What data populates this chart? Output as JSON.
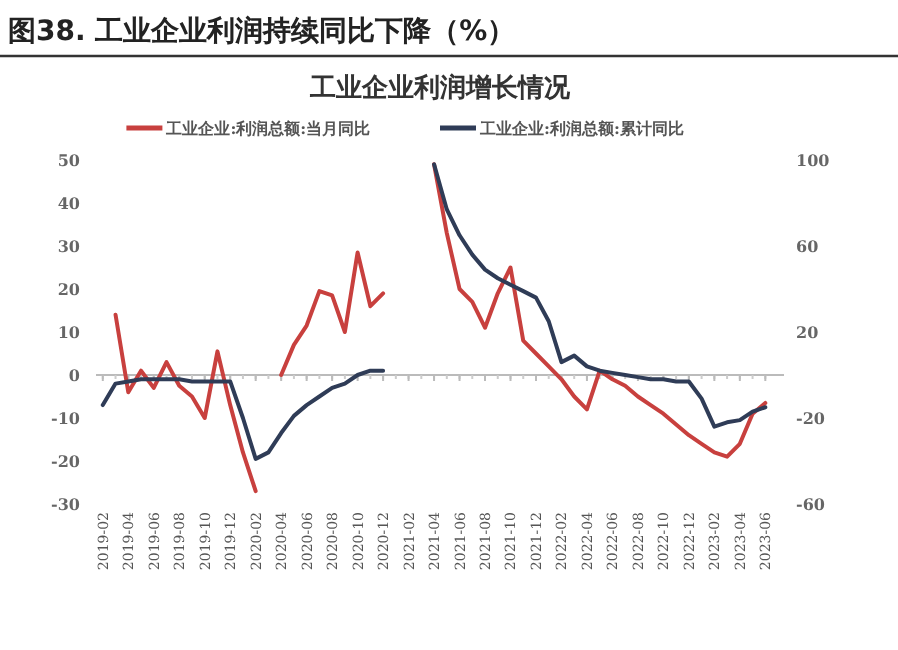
{
  "chart_data": {
    "type": "line",
    "title": "图38. 工业企业利润持续同比下降（%）",
    "subtitle": "工业企业利润增长情况",
    "x": [
      "2019-02",
      "2019-03",
      "2019-04",
      "2019-05",
      "2019-06",
      "2019-07",
      "2019-08",
      "2019-09",
      "2019-10",
      "2019-11",
      "2019-12",
      "2020-01",
      "2020-02",
      "2020-03",
      "2020-04",
      "2020-05",
      "2020-06",
      "2020-07",
      "2020-08",
      "2020-09",
      "2020-10",
      "2020-11",
      "2020-12",
      "2021-01",
      "2021-02",
      "2021-03",
      "2021-04",
      "2021-05",
      "2021-06",
      "2021-07",
      "2021-08",
      "2021-09",
      "2021-10",
      "2021-11",
      "2021-12",
      "2022-01",
      "2022-02",
      "2022-03",
      "2022-04",
      "2022-05",
      "2022-06",
      "2022-07",
      "2022-08",
      "2022-09",
      "2022-10",
      "2022-11",
      "2022-12",
      "2023-01",
      "2023-02",
      "2023-03",
      "2023-04",
      "2023-05",
      "2023-06"
    ],
    "series": [
      {
        "name": "工业企业:利润总额:当月同比",
        "color": "#c8403e",
        "values": [
          null,
          14,
          -4,
          1,
          -3,
          3,
          -2.5,
          -5,
          -10,
          5.5,
          -7,
          -18,
          -27,
          null,
          0,
          7,
          11.5,
          19.5,
          18.5,
          10,
          28.5,
          16,
          19,
          null,
          null,
          null,
          49,
          33,
          20,
          17,
          11,
          19,
          25,
          8,
          5,
          2,
          -1,
          -5,
          -8,
          1,
          -1,
          -2.5,
          -5,
          -7,
          -9,
          -11.5,
          -14,
          -16,
          -18,
          -19,
          -16,
          -9,
          -6.5
        ]
      },
      {
        "name": "工业企业:利润总额:累计同比",
        "color": "#2f3c57",
        "axis": "y2",
        "values": [
          -14,
          -4,
          -3,
          -2,
          -2,
          -2,
          -2,
          -3,
          -3,
          -3,
          -3,
          -20,
          -39,
          -36,
          -27,
          -19,
          -14,
          -10,
          -6,
          -4,
          0,
          2,
          2,
          null,
          null,
          null,
          98,
          77,
          65,
          56,
          49,
          45,
          42,
          39,
          36,
          25,
          6,
          9,
          4,
          2,
          1,
          0,
          -1,
          -2,
          -2,
          -3,
          -3,
          -11,
          -24,
          -22,
          -21,
          -17,
          -15
        ]
      }
    ],
    "xlim": [
      "2019-01-15",
      "2023-07-15"
    ],
    "xticks": [
      "2019-02",
      "2019-04",
      "2019-06",
      "2019-08",
      "2019-10",
      "2019-12",
      "2020-02",
      "2020-04",
      "2020-06",
      "2020-08",
      "2020-10",
      "2020-12",
      "2021-02",
      "2021-04",
      "2021-06",
      "2021-08",
      "2021-10",
      "2021-12",
      "2022-02",
      "2022-04",
      "2022-06",
      "2022-08",
      "2022-10",
      "2022-12",
      "2023-02",
      "2023-04",
      "2023-06"
    ],
    "ylim": [
      -30,
      50
    ],
    "yticks": [
      -30,
      -20,
      -10,
      0,
      10,
      20,
      30,
      40,
      50
    ],
    "y2lim": [
      -60,
      100
    ],
    "y2ticks": [
      -60,
      -20,
      20,
      60,
      100
    ],
    "legend": "top"
  }
}
